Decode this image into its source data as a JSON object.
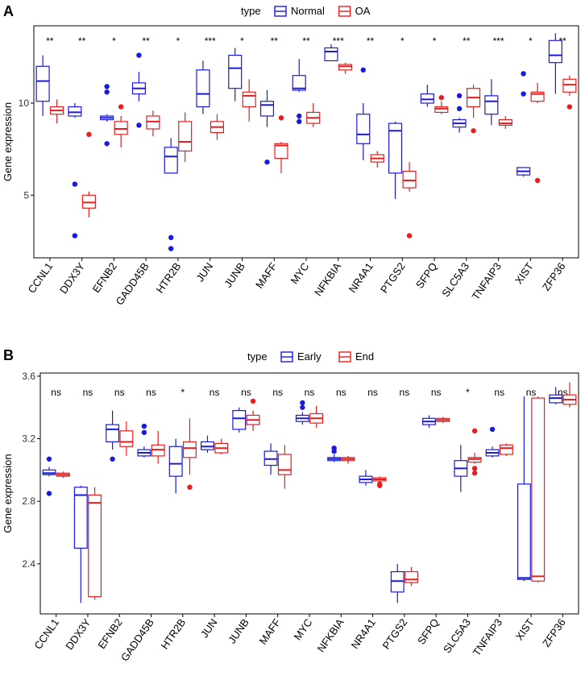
{
  "figure": {
    "background": "#ffffff",
    "panels_order": [
      "A",
      "B"
    ]
  },
  "chart_data": [
    {
      "panel": "A",
      "type": "box",
      "title": "",
      "xlabel": "",
      "ylabel": "Gene expression",
      "ylim": [
        1.6,
        14.2
      ],
      "yticks": [
        5,
        10
      ],
      "grid": false,
      "legend": {
        "title": "type",
        "placement": "top",
        "entries": [
          {
            "name": "Normal",
            "color": "#1a1adb"
          },
          {
            "name": "OA",
            "color": "#e61e1e"
          }
        ]
      },
      "categories": [
        "CCNL1",
        "DDX3Y",
        "EFNB2",
        "GADD45B",
        "HTR2B",
        "JUN",
        "JUNB",
        "MAFF",
        "MYC",
        "NFKBIA",
        "NR4A1",
        "PTGS2",
        "SFPQ",
        "SLC5A3",
        "TNFAIP3",
        "XIST",
        "ZFP36"
      ],
      "significance": [
        "**",
        "**",
        "*",
        "**",
        "*",
        "***",
        "*",
        "**",
        "**",
        "***",
        "**",
        "*",
        "*",
        "**",
        "***",
        "*",
        "**"
      ],
      "series": [
        {
          "name": "Normal",
          "color": "#1a1adb",
          "boxes": [
            {
              "min": 9.3,
              "q1": 10.1,
              "median": 11.2,
              "q3": 12.0,
              "max": 12.6,
              "outliers": []
            },
            {
              "min": 9.2,
              "q1": 9.3,
              "median": 9.5,
              "q3": 9.8,
              "max": 10.0,
              "outliers": [
                5.6,
                2.8
              ]
            },
            {
              "min": 9.0,
              "q1": 9.1,
              "median": 9.2,
              "q3": 9.3,
              "max": 9.4,
              "outliers": [
                10.9,
                10.6,
                7.8
              ]
            },
            {
              "min": 10.1,
              "q1": 10.5,
              "median": 10.8,
              "q3": 11.1,
              "max": 11.7,
              "outliers": [
                12.6,
                8.8
              ]
            },
            {
              "min": 6.2,
              "q1": 6.2,
              "median": 7.1,
              "q3": 7.6,
              "max": 8.1,
              "outliers": [
                2.7,
                2.1
              ]
            },
            {
              "min": 9.4,
              "q1": 9.8,
              "median": 10.5,
              "q3": 11.8,
              "max": 12.3,
              "outliers": []
            },
            {
              "min": 10.1,
              "q1": 10.8,
              "median": 11.9,
              "q3": 12.6,
              "max": 13.0,
              "outliers": []
            },
            {
              "min": 8.7,
              "q1": 9.3,
              "median": 9.9,
              "q3": 10.1,
              "max": 10.7,
              "outliers": [
                6.8
              ]
            },
            {
              "min": 10.6,
              "q1": 10.7,
              "median": 10.8,
              "q3": 11.5,
              "max": 12.4,
              "outliers": [
                9.3,
                9.0
              ]
            },
            {
              "min": 12.3,
              "q1": 12.3,
              "median": 12.8,
              "q3": 13.0,
              "max": 13.2,
              "outliers": []
            },
            {
              "min": 6.9,
              "q1": 7.8,
              "median": 8.3,
              "q3": 9.4,
              "max": 10.0,
              "outliers": [
                11.8
              ]
            },
            {
              "min": 4.8,
              "q1": 6.2,
              "median": 8.5,
              "q3": 8.9,
              "max": 9.0,
              "outliers": []
            },
            {
              "min": 9.8,
              "q1": 10.0,
              "median": 10.2,
              "q3": 10.5,
              "max": 11.0,
              "outliers": []
            },
            {
              "min": 8.4,
              "q1": 8.7,
              "median": 8.9,
              "q3": 9.1,
              "max": 9.2,
              "outliers": [
                10.4,
                9.7
              ]
            },
            {
              "min": 8.8,
              "q1": 9.4,
              "median": 10.1,
              "q3": 10.4,
              "max": 11.3,
              "outliers": []
            },
            {
              "min": 6.0,
              "q1": 6.1,
              "median": 6.3,
              "q3": 6.5,
              "max": 6.5,
              "outliers": [
                11.6,
                10.5
              ]
            },
            {
              "min": 10.5,
              "q1": 12.2,
              "median": 12.6,
              "q3": 13.4,
              "max": 13.8,
              "outliers": []
            }
          ]
        },
        {
          "name": "OA",
          "color": "#e61e1e",
          "boxes": [
            {
              "min": 8.9,
              "q1": 9.4,
              "median": 9.6,
              "q3": 9.8,
              "max": 10.2,
              "outliers": []
            },
            {
              "min": 3.8,
              "q1": 4.3,
              "median": 4.6,
              "q3": 5.0,
              "max": 5.2,
              "outliers": [
                8.3
              ]
            },
            {
              "min": 7.6,
              "q1": 8.3,
              "median": 8.6,
              "q3": 9.0,
              "max": 9.3,
              "outliers": [
                9.8
              ]
            },
            {
              "min": 8.2,
              "q1": 8.6,
              "median": 9.0,
              "q3": 9.3,
              "max": 9.6,
              "outliers": []
            },
            {
              "min": 6.8,
              "q1": 7.4,
              "median": 7.9,
              "q3": 9.0,
              "max": 9.5,
              "outliers": []
            },
            {
              "min": 8.0,
              "q1": 8.4,
              "median": 8.7,
              "q3": 9.0,
              "max": 9.4,
              "outliers": []
            },
            {
              "min": 9.0,
              "q1": 9.8,
              "median": 10.4,
              "q3": 10.6,
              "max": 11.3,
              "outliers": []
            },
            {
              "min": 6.2,
              "q1": 7.0,
              "median": 7.7,
              "q3": 7.8,
              "max": 7.9,
              "outliers": [
                9.2
              ]
            },
            {
              "min": 8.7,
              "q1": 8.9,
              "median": 9.2,
              "q3": 9.5,
              "max": 10.0,
              "outliers": []
            },
            {
              "min": 11.6,
              "q1": 11.8,
              "median": 12.0,
              "q3": 12.1,
              "max": 12.2,
              "outliers": []
            },
            {
              "min": 6.5,
              "q1": 6.8,
              "median": 7.0,
              "q3": 7.2,
              "max": 7.4,
              "outliers": []
            },
            {
              "min": 5.2,
              "q1": 5.4,
              "median": 5.8,
              "q3": 6.3,
              "max": 6.8,
              "outliers": [
                2.8
              ]
            },
            {
              "min": 9.4,
              "q1": 9.5,
              "median": 9.7,
              "q3": 9.8,
              "max": 10.1,
              "outliers": [
                10.3
              ]
            },
            {
              "min": 9.2,
              "q1": 9.8,
              "median": 10.3,
              "q3": 10.8,
              "max": 11.0,
              "outliers": [
                8.5
              ]
            },
            {
              "min": 8.6,
              "q1": 8.8,
              "median": 8.9,
              "q3": 9.1,
              "max": 9.3,
              "outliers": []
            },
            {
              "min": 10.0,
              "q1": 10.1,
              "median": 10.5,
              "q3": 10.6,
              "max": 11.1,
              "outliers": [
                5.8
              ]
            },
            {
              "min": 10.4,
              "q1": 10.6,
              "median": 11.0,
              "q3": 11.3,
              "max": 11.5,
              "outliers": [
                9.8
              ]
            }
          ]
        }
      ]
    },
    {
      "panel": "B",
      "type": "box",
      "title": "",
      "xlabel": "",
      "ylabel": "Gene expression",
      "ylim": [
        2.08,
        3.62
      ],
      "yticks": [
        2.4,
        2.8,
        3.2,
        3.6
      ],
      "grid": false,
      "legend": {
        "title": "type",
        "placement": "top",
        "entries": [
          {
            "name": "Early",
            "color": "#1a1adb"
          },
          {
            "name": "End",
            "color": "#e61e1e"
          }
        ]
      },
      "categories": [
        "CCNL1",
        "DDX3Y",
        "EFNB2",
        "GADD45B",
        "HTR2B",
        "JUN",
        "JUNB",
        "MAFF",
        "MYC",
        "NFKBIA",
        "NR4A1",
        "PTGS2",
        "SFPQ",
        "SLC5A3",
        "TNFAIP3",
        "XIST",
        "ZFP36"
      ],
      "significance": [
        "ns",
        "ns",
        "ns",
        "ns",
        "*",
        "ns",
        "ns",
        "ns",
        "ns",
        "ns",
        "ns",
        "ns",
        "ns",
        "*",
        "ns",
        "ns",
        "ns"
      ],
      "series": [
        {
          "name": "Early",
          "color": "#1a1adb",
          "boxes": [
            {
              "min": 2.96,
              "q1": 2.97,
              "median": 2.98,
              "q3": 3.0,
              "max": 3.02,
              "outliers": [
                3.07,
                2.85
              ]
            },
            {
              "min": 2.15,
              "q1": 2.5,
              "median": 2.84,
              "q3": 2.89,
              "max": 2.9,
              "outliers": []
            },
            {
              "min": 3.13,
              "q1": 3.18,
              "median": 3.26,
              "q3": 3.29,
              "max": 3.38,
              "outliers": [
                3.07
              ]
            },
            {
              "min": 3.08,
              "q1": 3.09,
              "median": 3.11,
              "q3": 3.13,
              "max": 3.15,
              "outliers": [
                3.28,
                3.24
              ]
            },
            {
              "min": 2.85,
              "q1": 2.96,
              "median": 3.04,
              "q3": 3.15,
              "max": 3.2,
              "outliers": []
            },
            {
              "min": 3.11,
              "q1": 3.13,
              "median": 3.15,
              "q3": 3.18,
              "max": 3.22,
              "outliers": []
            },
            {
              "min": 3.24,
              "q1": 3.26,
              "median": 3.33,
              "q3": 3.38,
              "max": 3.4,
              "outliers": []
            },
            {
              "min": 2.97,
              "q1": 3.03,
              "median": 3.07,
              "q3": 3.12,
              "max": 3.17,
              "outliers": []
            },
            {
              "min": 3.29,
              "q1": 3.31,
              "median": 3.33,
              "q3": 3.35,
              "max": 3.37,
              "outliers": [
                3.43,
                3.4
              ]
            },
            {
              "min": 3.05,
              "q1": 3.06,
              "median": 3.07,
              "q3": 3.08,
              "max": 3.1,
              "outliers": [
                3.14,
                3.12
              ]
            },
            {
              "min": 2.9,
              "q1": 2.92,
              "median": 2.94,
              "q3": 2.96,
              "max": 3.0,
              "outliers": []
            },
            {
              "min": 2.15,
              "q1": 2.22,
              "median": 2.29,
              "q3": 2.35,
              "max": 2.4,
              "outliers": []
            },
            {
              "min": 3.27,
              "q1": 3.29,
              "median": 3.31,
              "q3": 3.33,
              "max": 3.35,
              "outliers": []
            },
            {
              "min": 2.86,
              "q1": 2.96,
              "median": 3.01,
              "q3": 3.06,
              "max": 3.16,
              "outliers": []
            },
            {
              "min": 3.08,
              "q1": 3.09,
              "median": 3.11,
              "q3": 3.13,
              "max": 3.15,
              "outliers": [
                3.26
              ]
            },
            {
              "min": 2.29,
              "q1": 2.3,
              "median": 2.31,
              "q3": 2.91,
              "max": 3.47,
              "outliers": []
            },
            {
              "min": 3.42,
              "q1": 3.43,
              "median": 3.46,
              "q3": 3.48,
              "max": 3.53,
              "outliers": []
            }
          ]
        },
        {
          "name": "End",
          "color": "#e61e1e",
          "boxes": [
            {
              "min": 2.95,
              "q1": 2.96,
              "median": 2.97,
              "q3": 2.98,
              "max": 2.99,
              "outliers": []
            },
            {
              "min": 2.17,
              "q1": 2.19,
              "median": 2.79,
              "q3": 2.84,
              "max": 2.89,
              "outliers": []
            },
            {
              "min": 3.09,
              "q1": 3.15,
              "median": 3.18,
              "q3": 3.25,
              "max": 3.31,
              "outliers": []
            },
            {
              "min": 3.04,
              "q1": 3.09,
              "median": 3.13,
              "q3": 3.16,
              "max": 3.25,
              "outliers": []
            },
            {
              "min": 2.97,
              "q1": 3.08,
              "median": 3.14,
              "q3": 3.18,
              "max": 3.33,
              "outliers": [
                2.89
              ]
            },
            {
              "min": 3.1,
              "q1": 3.11,
              "median": 3.14,
              "q3": 3.17,
              "max": 3.2,
              "outliers": []
            },
            {
              "min": 3.25,
              "q1": 3.29,
              "median": 3.32,
              "q3": 3.35,
              "max": 3.38,
              "outliers": [
                3.44
              ]
            },
            {
              "min": 2.88,
              "q1": 2.97,
              "median": 3.0,
              "q3": 3.1,
              "max": 3.16,
              "outliers": []
            },
            {
              "min": 3.27,
              "q1": 3.3,
              "median": 3.33,
              "q3": 3.36,
              "max": 3.41,
              "outliers": []
            },
            {
              "min": 3.04,
              "q1": 3.06,
              "median": 3.07,
              "q3": 3.08,
              "max": 3.09,
              "outliers": []
            },
            {
              "min": 2.91,
              "q1": 2.93,
              "median": 2.94,
              "q3": 2.95,
              "max": 2.96,
              "outliers": [
                2.91,
                2.9
              ]
            },
            {
              "min": 2.26,
              "q1": 2.28,
              "median": 2.3,
              "q3": 2.35,
              "max": 2.38,
              "outliers": []
            },
            {
              "min": 3.3,
              "q1": 3.31,
              "median": 3.32,
              "q3": 3.33,
              "max": 3.34,
              "outliers": []
            },
            {
              "min": 3.04,
              "q1": 3.05,
              "median": 3.07,
              "q3": 3.08,
              "max": 3.11,
              "outliers": [
                3.25,
                3.01,
                2.98
              ]
            },
            {
              "min": 3.09,
              "q1": 3.1,
              "median": 3.14,
              "q3": 3.16,
              "max": 3.17,
              "outliers": []
            },
            {
              "min": 2.28,
              "q1": 2.29,
              "median": 2.32,
              "q3": 3.46,
              "max": 3.47,
              "outliers": []
            },
            {
              "min": 3.4,
              "q1": 3.42,
              "median": 3.45,
              "q3": 3.48,
              "max": 3.56,
              "outliers": []
            }
          ]
        }
      ]
    }
  ]
}
